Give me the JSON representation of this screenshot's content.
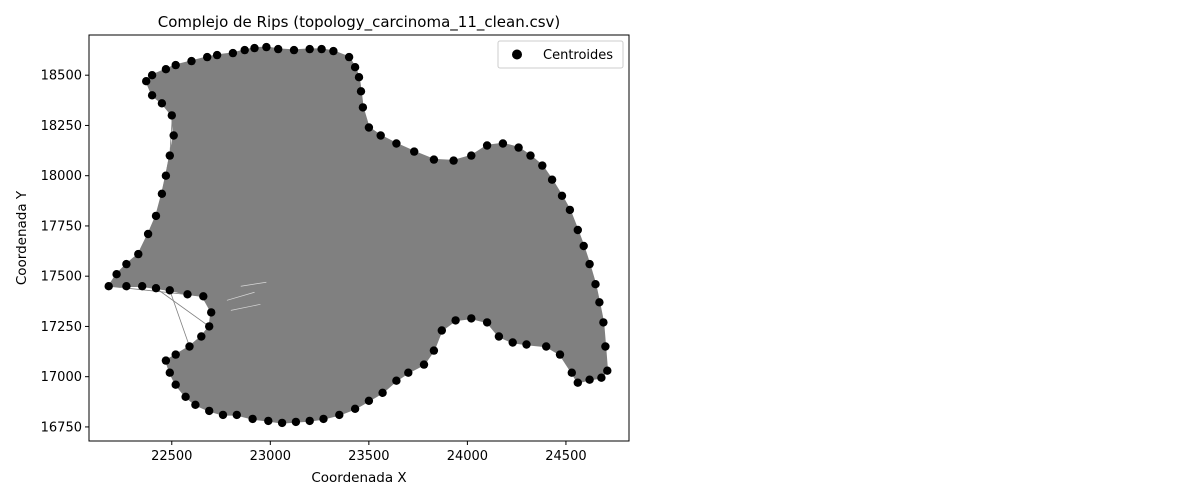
{
  "chart_data": {
    "type": "scatter",
    "title": "Complejo de Rips (topology_carcinoma_11_clean.csv)",
    "xlabel": "Coordenada X",
    "ylabel": "Coordenada Y",
    "xlim": [
      22080,
      24820
    ],
    "ylim": [
      16680,
      18700
    ],
    "xticks": [
      22500,
      23000,
      23500,
      24000,
      24500
    ],
    "yticks": [
      16750,
      17000,
      17250,
      17500,
      17750,
      18000,
      18250,
      18500
    ],
    "grid": false,
    "legend": {
      "position": "top-right",
      "entries": [
        "Centroides"
      ]
    },
    "series": [
      {
        "name": "Centroides",
        "marker": "circle",
        "color": "#000000",
        "edge_color": "#808080",
        "boundary_points": [
          [
            22370,
            18470
          ],
          [
            22400,
            18500
          ],
          [
            22470,
            18530
          ],
          [
            22520,
            18550
          ],
          [
            22600,
            18570
          ],
          [
            22680,
            18590
          ],
          [
            22730,
            18600
          ],
          [
            22810,
            18610
          ],
          [
            22870,
            18625
          ],
          [
            22920,
            18635
          ],
          [
            22980,
            18640
          ],
          [
            23040,
            18630
          ],
          [
            23120,
            18625
          ],
          [
            23200,
            18630
          ],
          [
            23260,
            18630
          ],
          [
            23320,
            18620
          ],
          [
            23400,
            18590
          ],
          [
            23430,
            18540
          ],
          [
            23450,
            18490
          ],
          [
            23460,
            18420
          ],
          [
            23470,
            18340
          ],
          [
            23500,
            18240
          ],
          [
            23560,
            18200
          ],
          [
            23640,
            18160
          ],
          [
            23730,
            18120
          ],
          [
            23830,
            18080
          ],
          [
            23930,
            18075
          ],
          [
            24020,
            18100
          ],
          [
            24100,
            18150
          ],
          [
            24180,
            18160
          ],
          [
            24260,
            18140
          ],
          [
            24320,
            18100
          ],
          [
            24380,
            18050
          ],
          [
            24430,
            17980
          ],
          [
            24480,
            17900
          ],
          [
            24520,
            17830
          ],
          [
            24560,
            17730
          ],
          [
            24590,
            17650
          ],
          [
            24620,
            17560
          ],
          [
            24650,
            17460
          ],
          [
            24670,
            17370
          ],
          [
            24690,
            17270
          ],
          [
            24700,
            17150
          ],
          [
            24710,
            17030
          ],
          [
            24680,
            16995
          ],
          [
            24620,
            16985
          ],
          [
            24560,
            16970
          ],
          [
            24530,
            17020
          ],
          [
            24470,
            17110
          ],
          [
            24400,
            17150
          ],
          [
            24300,
            17160
          ],
          [
            24230,
            17170
          ],
          [
            24160,
            17200
          ],
          [
            24100,
            17270
          ],
          [
            24020,
            17290
          ],
          [
            23940,
            17280
          ],
          [
            23870,
            17230
          ],
          [
            23830,
            17130
          ],
          [
            23780,
            17060
          ],
          [
            23700,
            17020
          ],
          [
            23640,
            16980
          ],
          [
            23570,
            16920
          ],
          [
            23500,
            16880
          ],
          [
            23430,
            16840
          ],
          [
            23350,
            16810
          ],
          [
            23270,
            16790
          ],
          [
            23200,
            16780
          ],
          [
            23130,
            16775
          ],
          [
            23060,
            16770
          ],
          [
            22990,
            16780
          ],
          [
            22910,
            16790
          ],
          [
            22830,
            16810
          ],
          [
            22760,
            16810
          ],
          [
            22690,
            16830
          ],
          [
            22620,
            16860
          ],
          [
            22570,
            16900
          ],
          [
            22520,
            16960
          ],
          [
            22490,
            17020
          ],
          [
            22470,
            17080
          ],
          [
            22520,
            17110
          ],
          [
            22590,
            17150
          ],
          [
            22650,
            17200
          ],
          [
            22690,
            17250
          ],
          [
            22700,
            17320
          ],
          [
            22660,
            17400
          ],
          [
            22580,
            17410
          ],
          [
            22490,
            17430
          ],
          [
            22420,
            17440
          ],
          [
            22350,
            17450
          ],
          [
            22270,
            17450
          ],
          [
            22180,
            17450
          ],
          [
            22220,
            17510
          ],
          [
            22270,
            17560
          ],
          [
            22330,
            17610
          ],
          [
            22380,
            17710
          ],
          [
            22420,
            17800
          ],
          [
            22450,
            17910
          ],
          [
            22470,
            18000
          ],
          [
            22490,
            18100
          ],
          [
            22510,
            18200
          ],
          [
            22500,
            18300
          ],
          [
            22450,
            18360
          ],
          [
            22400,
            18400
          ]
        ]
      }
    ]
  }
}
